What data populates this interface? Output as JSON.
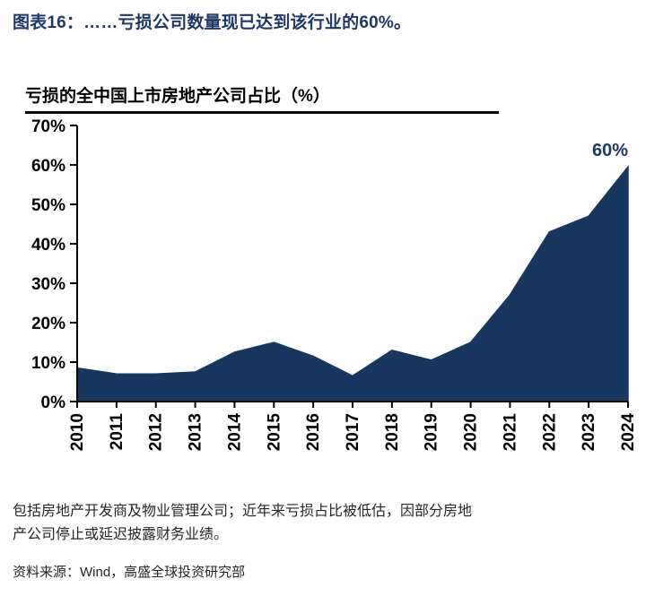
{
  "page": {
    "title": "图表16：……亏损公司数量现已达到该行业的60%。",
    "footnote": "包括房地产开发商及物业管理公司；近年来亏损占比被低估，因部分房地产公司停止或延迟披露财务业绩。",
    "source": "资料来源：Wind，高盛全球投资研究部"
  },
  "chart_data": {
    "type": "area",
    "title": "亏损的全中国上市房地产公司占比（%）",
    "categories": [
      "2010",
      "2011",
      "2012",
      "2013",
      "2014",
      "2015",
      "2016",
      "2017",
      "2018",
      "2019",
      "2020",
      "2021",
      "2022",
      "2023",
      "2024"
    ],
    "values": [
      8.5,
      7,
      7,
      7.5,
      12.5,
      15,
      11.5,
      6.5,
      13,
      10.5,
      15,
      27,
      43,
      47,
      59.5
    ],
    "xlabel": "",
    "ylabel": "",
    "ylim": [
      0,
      70
    ],
    "ytick_step": 10,
    "ytick_labels": [
      "0%",
      "10%",
      "20%",
      "30%",
      "40%",
      "50%",
      "60%",
      "70%"
    ],
    "grid": false,
    "legend": false,
    "annotation": {
      "text": "60%",
      "at_category": "2024"
    },
    "fill_color": "#17375E",
    "annotation_color": "#1F3864",
    "axis_color": "#000000"
  },
  "colors": {
    "title_navy": "#1F3864",
    "area_navy": "#17375E",
    "axis_text": "#000000",
    "footnote_text": "#262626"
  }
}
